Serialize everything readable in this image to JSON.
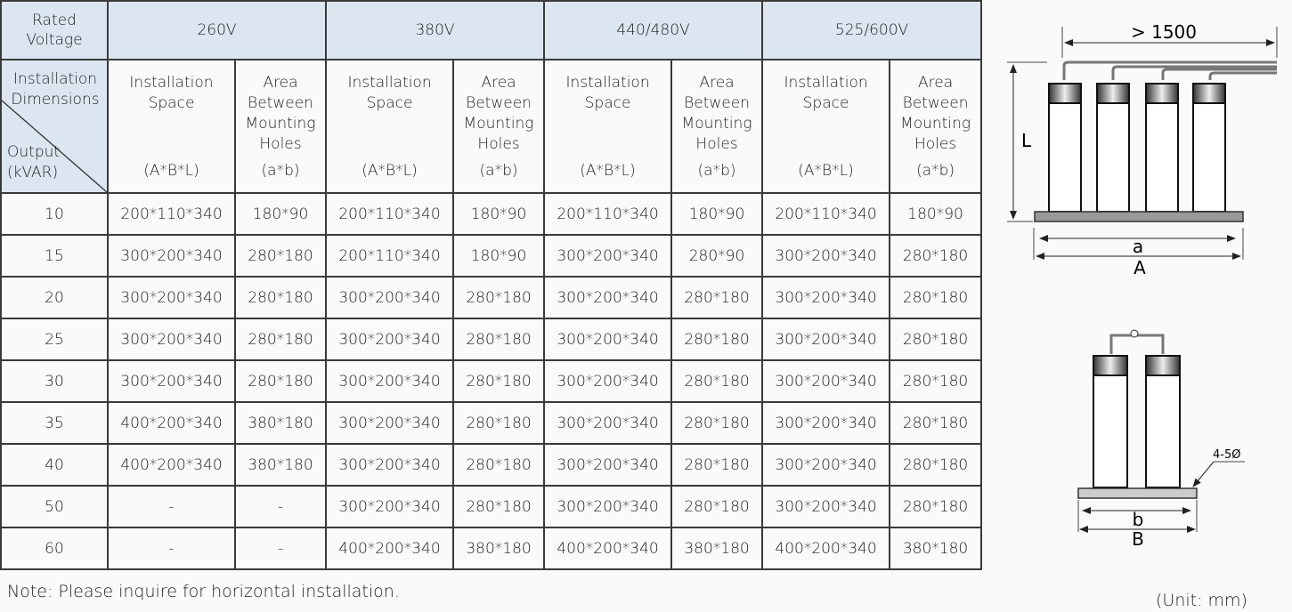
{
  "header": {
    "rated_voltage": "Rated Voltage",
    "corner_top": "Installation Dimensions",
    "corner_bottom": "Output (kVAR)",
    "voltages": [
      "260V",
      "380V",
      "440/480V",
      "525/600V"
    ],
    "col_space": "Installation Space",
    "col_space_unit": "(A*B*L)",
    "col_area": "Area Between Mounting Holes",
    "col_area_unit": "(a*b)"
  },
  "rows": [
    {
      "output": "10",
      "cells": [
        "200*110*340",
        "180*90",
        "200*110*340",
        "180*90",
        "200*110*340",
        "180*90",
        "200*110*340",
        "180*90"
      ]
    },
    {
      "output": "15",
      "cells": [
        "300*200*340",
        "280*180",
        "200*110*340",
        "180*90",
        "300*200*340",
        "280*90",
        "300*200*340",
        "280*180"
      ]
    },
    {
      "output": "20",
      "cells": [
        "300*200*340",
        "280*180",
        "300*200*340",
        "280*180",
        "300*200*340",
        "280*180",
        "300*200*340",
        "280*180"
      ]
    },
    {
      "output": "25",
      "cells": [
        "300*200*340",
        "280*180",
        "300*200*340",
        "280*180",
        "300*200*340",
        "280*180",
        "300*200*340",
        "280*180"
      ]
    },
    {
      "output": "30",
      "cells": [
        "300*200*340",
        "280*180",
        "300*200*340",
        "280*180",
        "300*200*340",
        "280*180",
        "300*200*340",
        "280*180"
      ]
    },
    {
      "output": "35",
      "cells": [
        "400*200*340",
        "380*180",
        "300*200*340",
        "280*180",
        "300*200*340",
        "280*180",
        "300*200*340",
        "280*180"
      ]
    },
    {
      "output": "40",
      "cells": [
        "400*200*340",
        "380*180",
        "300*200*340",
        "280*180",
        "300*200*340",
        "280*180",
        "300*200*340",
        "280*180"
      ]
    },
    {
      "output": "50",
      "cells": [
        "-",
        "-",
        "300*200*340",
        "280*180",
        "300*200*340",
        "280*180",
        "300*200*340",
        "280*180"
      ]
    },
    {
      "output": "60",
      "cells": [
        "-",
        "-",
        "400*200*340",
        "380*180",
        "400*200*340",
        "380*180",
        "400*200*340",
        "380*180"
      ]
    }
  ],
  "note": "Note: Please inquire for horizontal installation.",
  "unit_note": "(Unit: mm)",
  "diagram_front": {
    "cable_length": "> 1500",
    "height": "L",
    "hole_spacing": "a",
    "width": "A"
  },
  "diagram_side": {
    "hole_spec": "4-5Ø",
    "hole_spacing": "b",
    "depth": "B"
  },
  "colors": {
    "header_bg": "#dce6f1",
    "border": "#3a3a3a",
    "background": "#fafafa"
  }
}
